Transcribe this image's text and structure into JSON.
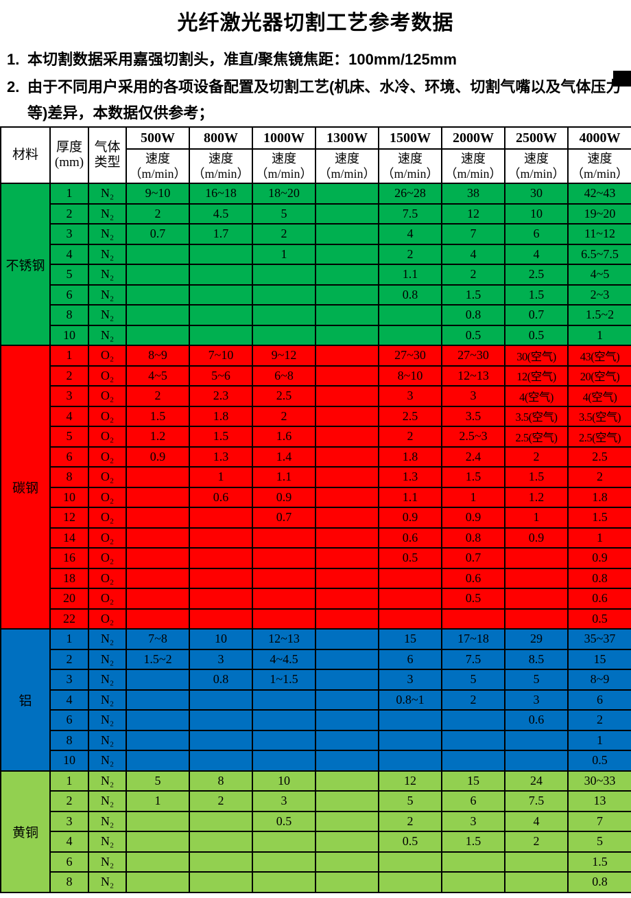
{
  "title": "光纤激光器切割工艺参考数据",
  "notes": [
    {
      "num": "1.",
      "text": "本切割数据采用嘉强切割头，准直/聚焦镜焦距：100mm/125mm"
    },
    {
      "num": "2.",
      "text": "由于不同用户采用的各项设备配置及切割工艺(机床、水冷、环境、切割气嘴以及气体压力等)差异，本数据仅供参考；"
    }
  ],
  "colors": {
    "stainless_steel": "#00B050",
    "carbon_steel": "#FF0000",
    "aluminum": "#0070C0",
    "brass": "#92D050",
    "border": "#000000",
    "header_bg": "#FFFFFF"
  },
  "table": {
    "header": {
      "material": "材料",
      "thickness_line1": "厚度",
      "thickness_line2": "(mm)",
      "gas_line1": "气体",
      "gas_line2": "类型",
      "powers": [
        "500W",
        "800W",
        "1000W",
        "1300W",
        "1500W",
        "2000W",
        "2500W",
        "4000W"
      ],
      "speed_label": "速度",
      "speed_unit": "（m/min）"
    },
    "sections": [
      {
        "material": "不锈钢",
        "color": "#00B050",
        "rows": [
          {
            "thickness": "1",
            "gas": "N₂",
            "speeds": [
              "9~10",
              "16~18",
              "18~20",
              "",
              "26~28",
              "38",
              "30",
              "42~43"
            ]
          },
          {
            "thickness": "2",
            "gas": "N₂",
            "speeds": [
              "2",
              "4.5",
              "5",
              "",
              "7.5",
              "12",
              "10",
              "19~20"
            ]
          },
          {
            "thickness": "3",
            "gas": "N₂",
            "speeds": [
              "0.7",
              "1.7",
              "2",
              "",
              "4",
              "7",
              "6",
              "11~12"
            ]
          },
          {
            "thickness": "4",
            "gas": "N₂",
            "speeds": [
              "",
              "",
              "1",
              "",
              "2",
              "4",
              "4",
              "6.5~7.5"
            ]
          },
          {
            "thickness": "5",
            "gas": "N₂",
            "speeds": [
              "",
              "",
              "",
              "",
              "1.1",
              "2",
              "2.5",
              "4~5"
            ]
          },
          {
            "thickness": "6",
            "gas": "N₂",
            "speeds": [
              "",
              "",
              "",
              "",
              "0.8",
              "1.5",
              "1.5",
              "2~3"
            ]
          },
          {
            "thickness": "8",
            "gas": "N₂",
            "speeds": [
              "",
              "",
              "",
              "",
              "",
              "0.8",
              "0.7",
              "1.5~2"
            ]
          },
          {
            "thickness": "10",
            "gas": "N₂",
            "speeds": [
              "",
              "",
              "",
              "",
              "",
              "0.5",
              "0.5",
              "1"
            ]
          }
        ]
      },
      {
        "material": "碳钢",
        "color": "#FF0000",
        "rows": [
          {
            "thickness": "1",
            "gas": "O₂",
            "speeds": [
              "8~9",
              "7~10",
              "9~12",
              "",
              "27~30",
              "27~30",
              "30(空气)",
              "43(空气)"
            ]
          },
          {
            "thickness": "2",
            "gas": "O₂",
            "speeds": [
              "4~5",
              "5~6",
              "6~8",
              "",
              "8~10",
              "12~13",
              "12(空气)",
              "20(空气)"
            ]
          },
          {
            "thickness": "3",
            "gas": "O₂",
            "speeds": [
              "2",
              "2.3",
              "2.5",
              "",
              "3",
              "3",
              "4(空气)",
              "4(空气)"
            ]
          },
          {
            "thickness": "4",
            "gas": "O₂",
            "speeds": [
              "1.5",
              "1.8",
              "2",
              "",
              "2.5",
              "3.5",
              "3.5(空气)",
              "3.5(空气)"
            ]
          },
          {
            "thickness": "5",
            "gas": "O₂",
            "speeds": [
              "1.2",
              "1.5",
              "1.6",
              "",
              "2",
              "2.5~3",
              "2.5(空气)",
              "2.5(空气)"
            ]
          },
          {
            "thickness": "6",
            "gas": "O₂",
            "speeds": [
              "0.9",
              "1.3",
              "1.4",
              "",
              "1.8",
              "2.4",
              "2",
              "2.5"
            ]
          },
          {
            "thickness": "8",
            "gas": "O₂",
            "speeds": [
              "",
              "1",
              "1.1",
              "",
              "1.3",
              "1.5",
              "1.5",
              "2"
            ]
          },
          {
            "thickness": "10",
            "gas": "O₂",
            "speeds": [
              "",
              "0.6",
              "0.9",
              "",
              "1.1",
              "1",
              "1.2",
              "1.8"
            ]
          },
          {
            "thickness": "12",
            "gas": "O₂",
            "speeds": [
              "",
              "",
              "0.7",
              "",
              "0.9",
              "0.9",
              "1",
              "1.5"
            ]
          },
          {
            "thickness": "14",
            "gas": "O₂",
            "speeds": [
              "",
              "",
              "",
              "",
              "0.6",
              "0.8",
              "0.9",
              "1"
            ]
          },
          {
            "thickness": "16",
            "gas": "O₂",
            "speeds": [
              "",
              "",
              "",
              "",
              "0.5",
              "0.7",
              "",
              "0.9"
            ]
          },
          {
            "thickness": "18",
            "gas": "O₂",
            "speeds": [
              "",
              "",
              "",
              "",
              "",
              "0.6",
              "",
              "0.8"
            ]
          },
          {
            "thickness": "20",
            "gas": "O₂",
            "speeds": [
              "",
              "",
              "",
              "",
              "",
              "0.5",
              "",
              "0.6"
            ]
          },
          {
            "thickness": "22",
            "gas": "O₂",
            "speeds": [
              "",
              "",
              "",
              "",
              "",
              "",
              "",
              "0.5"
            ]
          }
        ]
      },
      {
        "material": "铝",
        "color": "#0070C0",
        "rows": [
          {
            "thickness": "1",
            "gas": "N₂",
            "speeds": [
              "7~8",
              "10",
              "12~13",
              "",
              "15",
              "17~18",
              "29",
              "35~37"
            ]
          },
          {
            "thickness": "2",
            "gas": "N₂",
            "speeds": [
              "1.5~2",
              "3",
              "4~4.5",
              "",
              "6",
              "7.5",
              "8.5",
              "15"
            ]
          },
          {
            "thickness": "3",
            "gas": "N₂",
            "speeds": [
              "",
              "0.8",
              "1~1.5",
              "",
              "3",
              "5",
              "5",
              "8~9"
            ]
          },
          {
            "thickness": "4",
            "gas": "N₂",
            "speeds": [
              "",
              "",
              "",
              "",
              "0.8~1",
              "2",
              "3",
              "6"
            ]
          },
          {
            "thickness": "6",
            "gas": "N₂",
            "speeds": [
              "",
              "",
              "",
              "",
              "",
              "",
              "0.6",
              "2"
            ]
          },
          {
            "thickness": "8",
            "gas": "N₂",
            "speeds": [
              "",
              "",
              "",
              "",
              "",
              "",
              "",
              "1"
            ]
          },
          {
            "thickness": "10",
            "gas": "N₂",
            "speeds": [
              "",
              "",
              "",
              "",
              "",
              "",
              "",
              "0.5"
            ]
          }
        ]
      },
      {
        "material": "黄铜",
        "color": "#92D050",
        "rows": [
          {
            "thickness": "1",
            "gas": "N₂",
            "speeds": [
              "5",
              "8",
              "10",
              "",
              "12",
              "15",
              "24",
              "30~33"
            ]
          },
          {
            "thickness": "2",
            "gas": "N₂",
            "speeds": [
              "1",
              "2",
              "3",
              "",
              "5",
              "6",
              "7.5",
              "13"
            ]
          },
          {
            "thickness": "3",
            "gas": "N₂",
            "speeds": [
              "",
              "",
              "0.5",
              "",
              "2",
              "3",
              "4",
              "7"
            ]
          },
          {
            "thickness": "4",
            "gas": "N₂",
            "speeds": [
              "",
              "",
              "",
              "",
              "0.5",
              "1.5",
              "2",
              "5"
            ]
          },
          {
            "thickness": "6",
            "gas": "N₂",
            "speeds": [
              "",
              "",
              "",
              "",
              "",
              "",
              "",
              "1.5"
            ]
          },
          {
            "thickness": "8",
            "gas": "N₂",
            "speeds": [
              "",
              "",
              "",
              "",
              "",
              "",
              "",
              "0.8"
            ]
          }
        ]
      }
    ]
  }
}
